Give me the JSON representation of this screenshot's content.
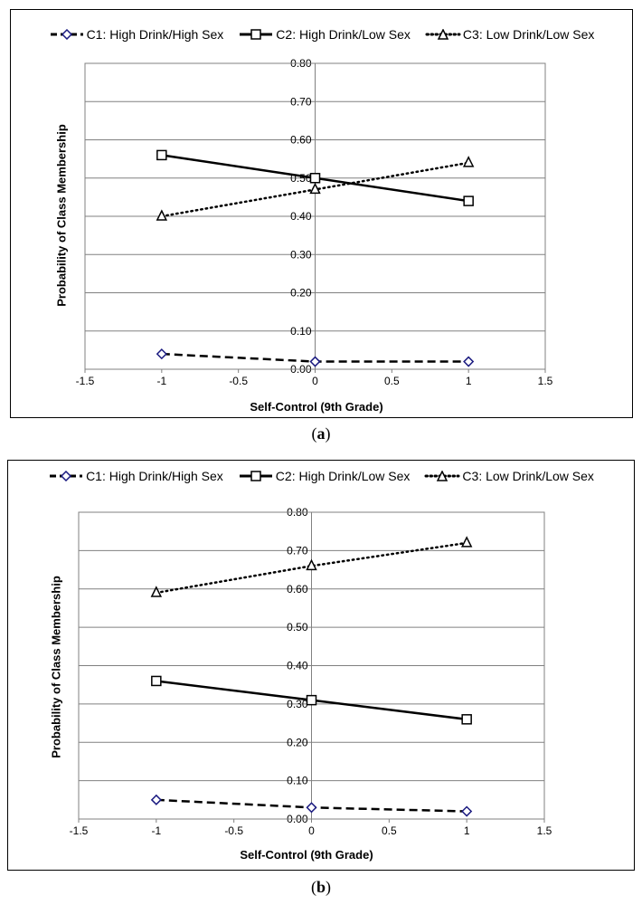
{
  "chart_data": [
    {
      "type": "line",
      "panel": "a",
      "caption_letter": "a",
      "xlabel": "Self-Control (9th Grade)",
      "ylabel": "Probability of Class Membership",
      "xlim": [
        -1.5,
        1.5
      ],
      "ylim": [
        0,
        0.8
      ],
      "xticks": [
        "-1.5",
        "-1",
        "-0.5",
        "0",
        "0.5",
        "1",
        "1.5"
      ],
      "yticks": [
        "0.00",
        "0.10",
        "0.20",
        "0.30",
        "0.40",
        "0.50",
        "0.60",
        "0.70",
        "0.80"
      ],
      "x": [
        -1,
        0,
        1
      ],
      "series": [
        {
          "name": "C1: High Drink/High Sex",
          "marker": "diamond",
          "style": "dashed",
          "values": [
            0.04,
            0.02,
            0.02
          ]
        },
        {
          "name": "C2: High Drink/Low Sex",
          "marker": "square",
          "style": "solid",
          "values": [
            0.56,
            0.5,
            0.44
          ]
        },
        {
          "name": "C3: Low Drink/Low Sex",
          "marker": "triangle",
          "style": "dotted",
          "values": [
            0.4,
            0.47,
            0.54
          ]
        }
      ],
      "grid": true,
      "legend": "top"
    },
    {
      "type": "line",
      "panel": "b",
      "caption_letter": "b",
      "xlabel": "Self-Control (9th Grade)",
      "ylabel": "Probability of Class Membership",
      "xlim": [
        -1.5,
        1.5
      ],
      "ylim": [
        0,
        0.8
      ],
      "xticks": [
        "-1.5",
        "-1",
        "-0.5",
        "0",
        "0.5",
        "1",
        "1.5"
      ],
      "yticks": [
        "0.00",
        "0.10",
        "0.20",
        "0.30",
        "0.40",
        "0.50",
        "0.60",
        "0.70",
        "0.80"
      ],
      "x": [
        -1,
        0,
        1
      ],
      "series": [
        {
          "name": "C1: High Drink/High Sex",
          "marker": "diamond",
          "style": "dashed",
          "values": [
            0.05,
            0.03,
            0.02
          ]
        },
        {
          "name": "C2: High Drink/Low Sex",
          "marker": "square",
          "style": "solid",
          "values": [
            0.36,
            0.31,
            0.26
          ]
        },
        {
          "name": "C3: Low Drink/Low Sex",
          "marker": "triangle",
          "style": "dotted",
          "values": [
            0.59,
            0.66,
            0.72
          ]
        }
      ],
      "grid": true,
      "legend": "top"
    }
  ],
  "colors": {
    "grid": "#808080",
    "line": "#000000",
    "diamond_marker": "#1a1a80"
  }
}
